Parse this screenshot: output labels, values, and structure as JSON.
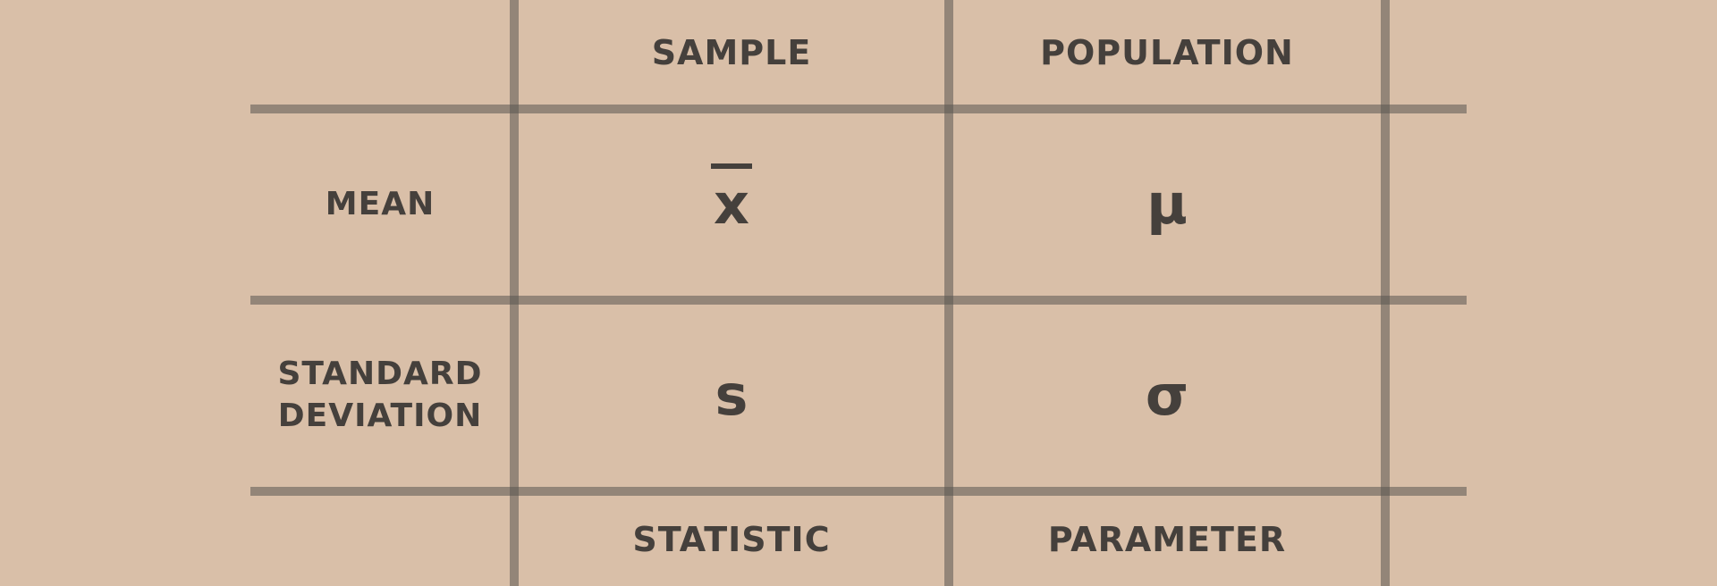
{
  "table": {
    "columns": [
      "SAMPLE",
      "POPULATION"
    ],
    "rows": [
      {
        "label_line1": "MEAN",
        "label_line2": "",
        "sample": "x",
        "population": "μ"
      },
      {
        "label_line1": "STANDARD",
        "label_line2": "DEVIATION",
        "sample": "s",
        "population": "σ"
      }
    ],
    "footer": [
      "STATISTIC",
      "PARAMETER"
    ]
  },
  "colors": {
    "background": "#d9bfa8",
    "grid": "#5a5550",
    "text": "#45403c"
  }
}
